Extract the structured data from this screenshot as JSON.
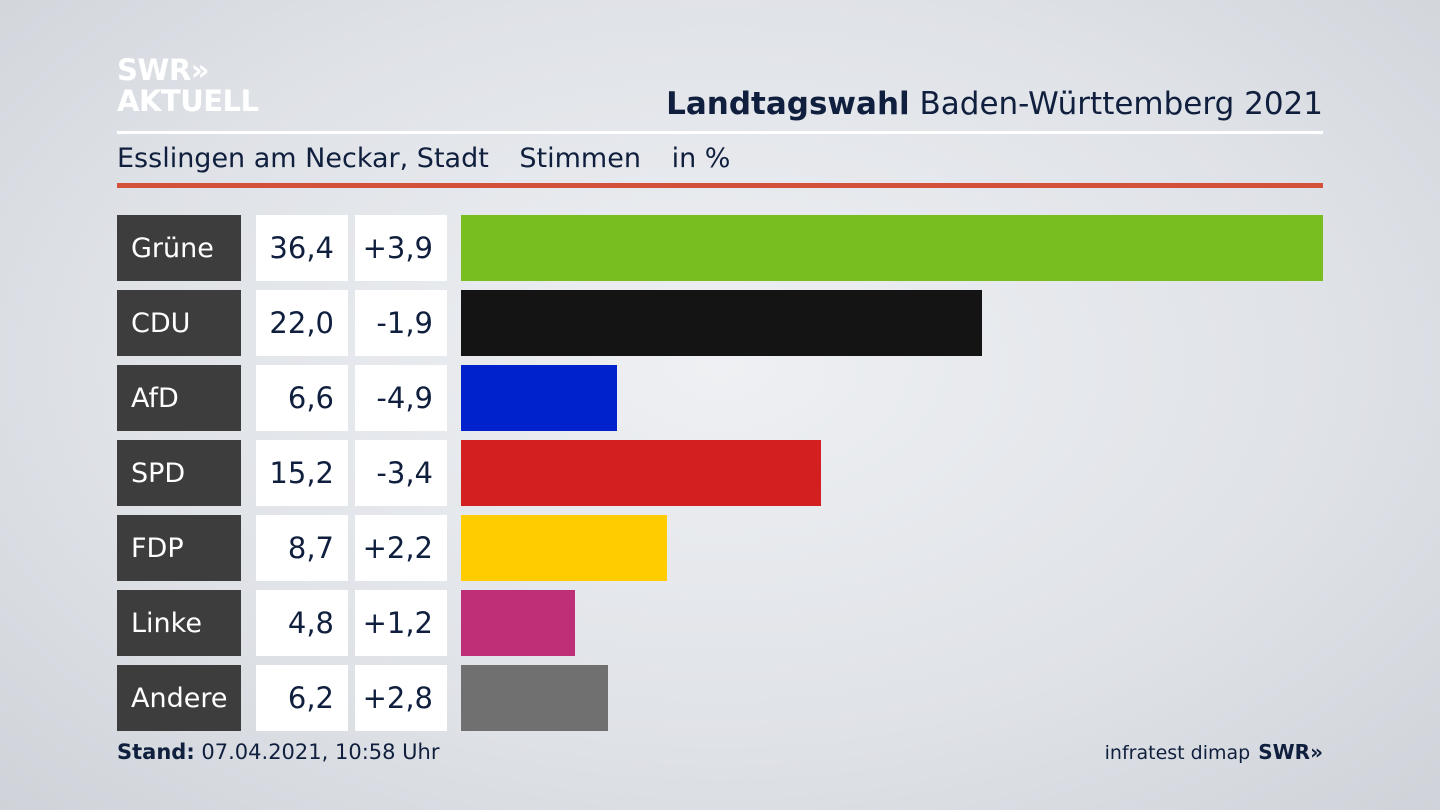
{
  "logo": {
    "line1": "SWR»",
    "line2": "AKTUELL"
  },
  "header": {
    "title_bold": "Landtagswahl",
    "title_rest": " Baden-Württemberg 2021"
  },
  "subheader": {
    "place": "Esslingen am Neckar, Stadt",
    "measure": "Stimmen",
    "unit": "in %"
  },
  "colors": {
    "accent_rule": "#d3503a"
  },
  "chart_data": {
    "type": "bar",
    "orientation": "horizontal",
    "categories": [
      "Grüne",
      "CDU",
      "AfD",
      "SPD",
      "FDP",
      "Linke",
      "Andere"
    ],
    "values": [
      36.4,
      22.0,
      6.6,
      15.2,
      8.7,
      4.8,
      6.2
    ],
    "value_labels": [
      "36,4",
      "22,0",
      "6,6",
      "15,2",
      "8,7",
      "4,8",
      "6,2"
    ],
    "diff_labels": [
      "+3,9",
      "-1,9",
      "-4,9",
      "-3,4",
      "+2,2",
      "+1,2",
      "+2,8"
    ],
    "bar_colors": [
      "#78be1e",
      "#141414",
      "#0022cc",
      "#d31f1f",
      "#ffcc00",
      "#be2f78",
      "#707070"
    ],
    "xlim": [
      0,
      36.4
    ]
  },
  "footer": {
    "stand_label": "Stand:",
    "stand_value": " 07.04.2021, 10:58 Uhr",
    "source": "infratest dimap",
    "brand": "SWR»"
  }
}
